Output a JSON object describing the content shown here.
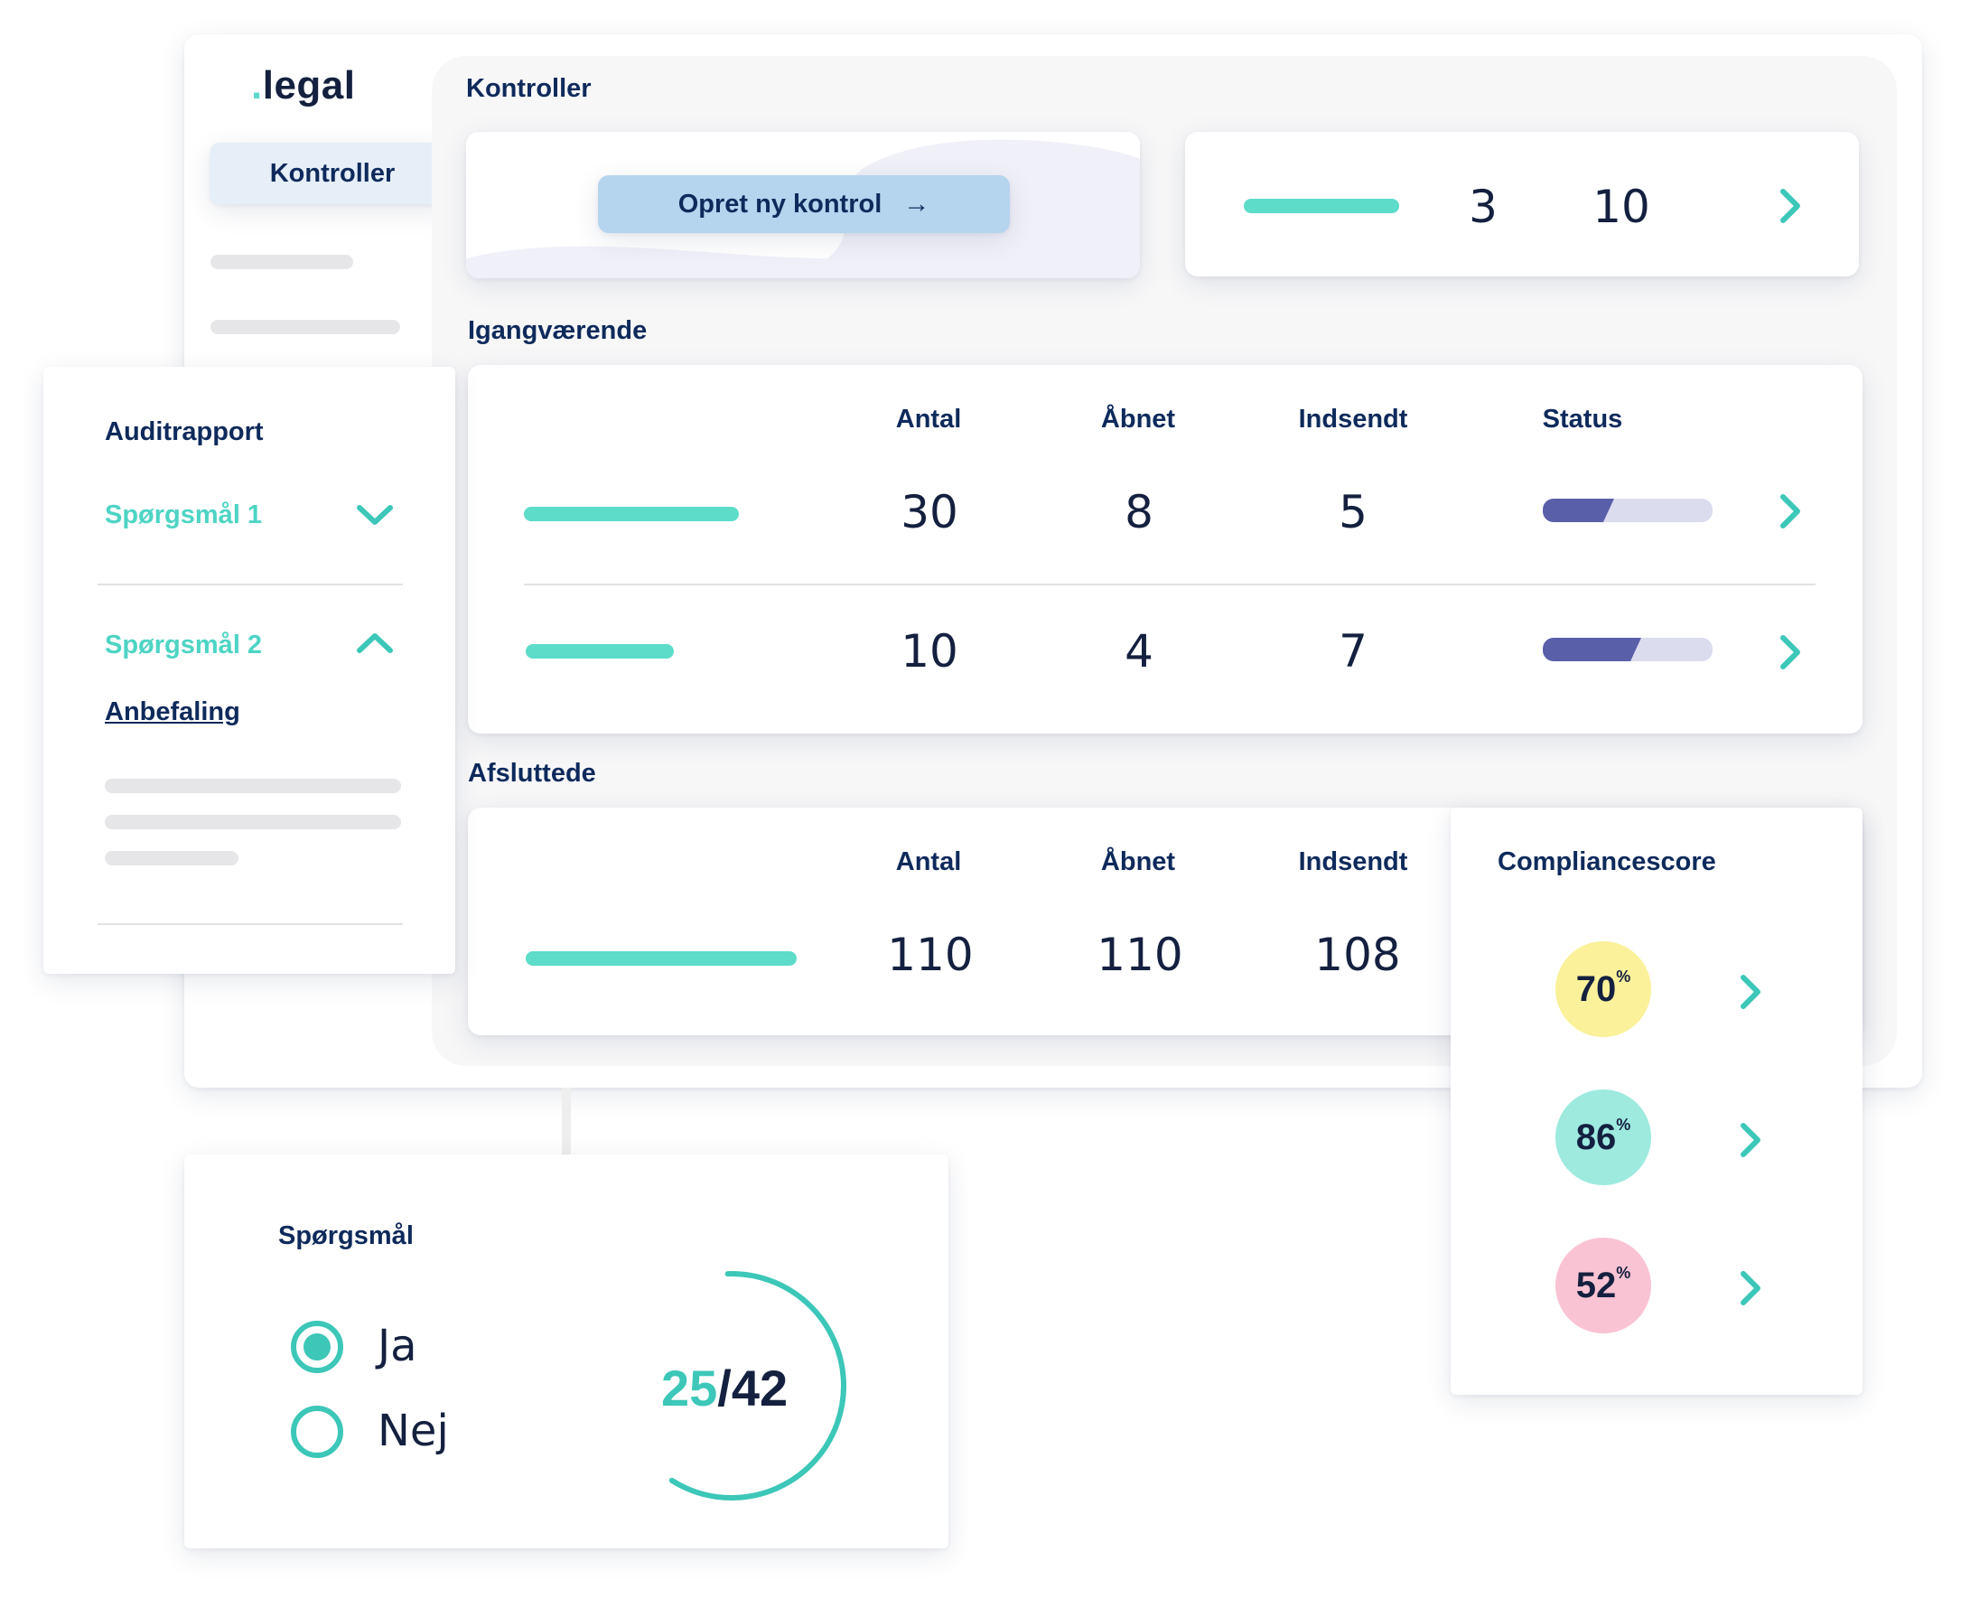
{
  "brand": {
    "dot": ".",
    "name": "legal"
  },
  "sidebar": {
    "active_item": "Kontroller"
  },
  "header": {
    "title": "Kontroller"
  },
  "create": {
    "button_label": "Opret ny kontrol",
    "arrow": "→"
  },
  "summary": {
    "value_a": "3",
    "value_b": "10"
  },
  "ongoing": {
    "title": "Igangværende",
    "columns": [
      "Antal",
      "Åbnet",
      "Indsendt",
      "Status"
    ],
    "rows": [
      {
        "antal": "30",
        "aabnet": "8",
        "indsendt": "5",
        "status_fraction": 0.42
      },
      {
        "antal": "10",
        "aabnet": "4",
        "indsendt": "7",
        "status_fraction": 0.58
      }
    ]
  },
  "finished": {
    "title": "Afsluttede",
    "columns": [
      "Antal",
      "Åbnet",
      "Indsendt"
    ],
    "rows": [
      {
        "antal": "110",
        "aabnet": "110",
        "indsendt": "108"
      }
    ]
  },
  "audit": {
    "title": "Auditrapport",
    "questions": [
      {
        "label": "Spørgsmål 1",
        "expanded": false
      },
      {
        "label": "Spørgsmål 2",
        "expanded": true
      }
    ],
    "recommendation_link": "Anbefaling"
  },
  "compliance": {
    "title": "Compliancescore",
    "pct_symbol": "%",
    "scores": [
      {
        "value": "70",
        "color": "#fbf19a"
      },
      {
        "value": "86",
        "color": "#9eeadf"
      },
      {
        "value": "52",
        "color": "#fac3d3"
      }
    ]
  },
  "question": {
    "title": "Spørgsmål",
    "options": [
      {
        "label": "Ja",
        "checked": true
      },
      {
        "label": "Nej",
        "checked": false
      }
    ],
    "progress": {
      "answered": "25",
      "separator": "/",
      "total": "42",
      "fraction": 0.595
    }
  },
  "colors": {
    "teal": "#5cdcc9",
    "navy": "#0e2a5c",
    "status": "#5a5fa9",
    "button": "#b5d4ee"
  }
}
